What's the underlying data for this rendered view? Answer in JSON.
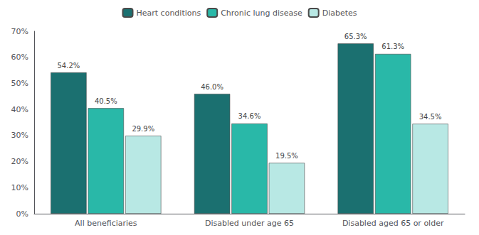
{
  "chart_data": {
    "type": "bar",
    "categories": [
      "All beneficiaries",
      "Disabled under age 65",
      "Disabled aged 65 or older"
    ],
    "series": [
      {
        "name": "Heart conditions",
        "color": "#1b7070",
        "values": [
          54.2,
          46.0,
          65.3
        ],
        "value_labels": [
          "54.2%",
          "46.0%",
          "65.3%"
        ]
      },
      {
        "name": "Chronic lung disease",
        "color": "#29b8a8",
        "values": [
          40.5,
          34.6,
          61.3
        ],
        "value_labels": [
          "40.5%",
          "34.6%",
          "61.3%"
        ]
      },
      {
        "name": "Diabetes",
        "color": "#b8e8e4",
        "values": [
          29.9,
          19.5,
          34.5
        ],
        "value_labels": [
          "29.9%",
          "19.5%",
          "34.5%"
        ]
      }
    ],
    "ylim": [
      0,
      70
    ],
    "yticks": [
      {
        "value": 0,
        "label": "0%"
      },
      {
        "value": 10,
        "label": "10%"
      },
      {
        "value": 20,
        "label": "20%"
      },
      {
        "value": 30,
        "label": "30%"
      },
      {
        "value": 40,
        "label": "40%"
      },
      {
        "value": 50,
        "label": "50%"
      },
      {
        "value": 60,
        "label": "60%"
      },
      {
        "value": 70,
        "label": "70%"
      }
    ],
    "grid": false,
    "legend": "top",
    "data_labels": true
  }
}
